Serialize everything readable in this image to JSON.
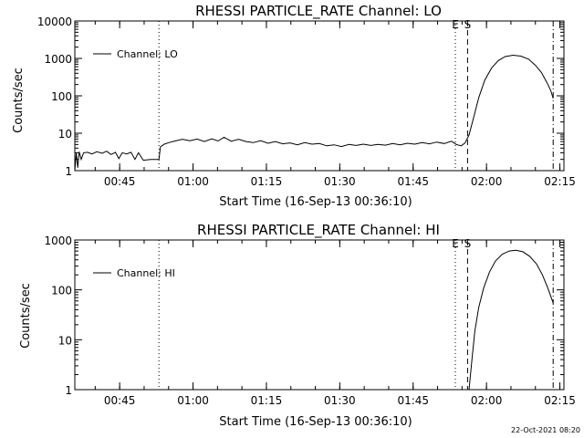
{
  "footer_text": "22-Oct-2021 08:20",
  "chart_data": [
    {
      "type": "line",
      "title": "RHESSI PARTICLE_RATE Channel: LO",
      "xlabel": "Start Time (16-Sep-13 00:36:10)",
      "ylabel": "Counts/sec",
      "yscale": "log",
      "xlim_minutes": [
        0.0,
        100.0
      ],
      "ylim": [
        1,
        10000
      ],
      "x_tick_minutes": [
        9.17,
        24.17,
        39.17,
        54.17,
        69.17,
        84.17,
        99.17
      ],
      "x_tick_labels": [
        "00:45",
        "01:00",
        "01:15",
        "01:30",
        "01:45",
        "02:00",
        "02:15"
      ],
      "y_tick_values": [
        1,
        10,
        100,
        1000,
        10000
      ],
      "y_tick_labels": [
        "1",
        "10",
        "100",
        "1000",
        "10000"
      ],
      "legend": {
        "label": "Channel: LO",
        "position": "top-left"
      },
      "markers": [
        {
          "minute": 17.2,
          "style": "dotted",
          "label": ""
        },
        {
          "minute": 77.8,
          "style": "dotted",
          "label": "E"
        },
        {
          "minute": 80.3,
          "style": "dashed",
          "label": "S"
        },
        {
          "minute": 97.8,
          "style": "dashdot",
          "label": ""
        }
      ],
      "series": [
        {
          "name": "Channel: LO",
          "points": [
            [
              0.0,
              1.0
            ],
            [
              0.3,
              3.0
            ],
            [
              0.6,
              1.2
            ],
            [
              0.9,
              3.2
            ],
            [
              1.3,
              2.0
            ],
            [
              1.8,
              3.0
            ],
            [
              2.6,
              3.1
            ],
            [
              3.5,
              2.8
            ],
            [
              4.5,
              3.2
            ],
            [
              5.6,
              2.9
            ],
            [
              6.5,
              3.3
            ],
            [
              7.4,
              2.7
            ],
            [
              8.3,
              3.1
            ],
            [
              9.0,
              2.1
            ],
            [
              9.7,
              3.0
            ],
            [
              10.6,
              2.8
            ],
            [
              11.5,
              3.1
            ],
            [
              12.3,
              2.0
            ],
            [
              13.0,
              3.0
            ],
            [
              14.0,
              1.9
            ],
            [
              15.5,
              2.0
            ],
            [
              17.2,
              2.0
            ],
            [
              17.5,
              4.3
            ],
            [
              18.3,
              5.1
            ],
            [
              19.2,
              5.6
            ],
            [
              20.5,
              6.2
            ],
            [
              22.0,
              6.9
            ],
            [
              23.5,
              6.3
            ],
            [
              25.0,
              7.0
            ],
            [
              26.5,
              6.0
            ],
            [
              28.0,
              7.1
            ],
            [
              29.3,
              6.2
            ],
            [
              30.5,
              7.8
            ],
            [
              32.0,
              6.1
            ],
            [
              33.5,
              6.9
            ],
            [
              35.0,
              6.0
            ],
            [
              36.5,
              5.6
            ],
            [
              38.0,
              6.3
            ],
            [
              39.5,
              5.4
            ],
            [
              41.0,
              6.0
            ],
            [
              42.5,
              5.2
            ],
            [
              44.0,
              5.5
            ],
            [
              45.5,
              4.9
            ],
            [
              47.0,
              5.6
            ],
            [
              48.5,
              5.1
            ],
            [
              50.0,
              5.3
            ],
            [
              51.5,
              4.6
            ],
            [
              53.0,
              4.9
            ],
            [
              54.5,
              4.4
            ],
            [
              56.0,
              5.0
            ],
            [
              57.5,
              4.7
            ],
            [
              59.0,
              5.1
            ],
            [
              60.5,
              4.7
            ],
            [
              62.0,
              5.0
            ],
            [
              63.5,
              4.8
            ],
            [
              65.0,
              5.3
            ],
            [
              66.5,
              4.9
            ],
            [
              68.0,
              5.4
            ],
            [
              69.5,
              5.1
            ],
            [
              71.0,
              5.6
            ],
            [
              72.5,
              5.2
            ],
            [
              74.0,
              5.8
            ],
            [
              75.5,
              5.3
            ],
            [
              77.0,
              6.1
            ],
            [
              78.0,
              5.0
            ],
            [
              79.0,
              4.6
            ],
            [
              79.8,
              5.5
            ],
            [
              80.6,
              9.0
            ],
            [
              81.5,
              25.0
            ],
            [
              82.6,
              90.0
            ],
            [
              83.8,
              260.0
            ],
            [
              85.2,
              550.0
            ],
            [
              86.6,
              880.0
            ],
            [
              88.0,
              1120.0
            ],
            [
              89.6,
              1220.0
            ],
            [
              91.2,
              1150.0
            ],
            [
              92.8,
              950.0
            ],
            [
              94.2,
              650.0
            ],
            [
              95.4,
              420.0
            ],
            [
              96.5,
              230.0
            ],
            [
              97.3,
              140.0
            ],
            [
              97.8,
              85.0
            ]
          ]
        }
      ]
    },
    {
      "type": "line",
      "title": "RHESSI PARTICLE_RATE Channel: HI",
      "xlabel": "Start Time (16-Sep-13 00:36:10)",
      "ylabel": "Counts/sec",
      "yscale": "log",
      "xlim_minutes": [
        0.0,
        100.0
      ],
      "ylim": [
        1,
        1000
      ],
      "x_tick_minutes": [
        9.17,
        24.17,
        39.17,
        54.17,
        69.17,
        84.17,
        99.17
      ],
      "x_tick_labels": [
        "00:45",
        "01:00",
        "01:15",
        "01:30",
        "01:45",
        "02:00",
        "02:15"
      ],
      "y_tick_values": [
        1,
        10,
        100,
        1000
      ],
      "y_tick_labels": [
        "1",
        "10",
        "100",
        "1000"
      ],
      "legend": {
        "label": "Channel: HI",
        "position": "top-left"
      },
      "markers": [
        {
          "minute": 17.2,
          "style": "dotted",
          "label": ""
        },
        {
          "minute": 77.8,
          "style": "dotted",
          "label": "E"
        },
        {
          "minute": 80.3,
          "style": "dashed",
          "label": "S"
        },
        {
          "minute": 97.8,
          "style": "dashdot",
          "label": ""
        }
      ],
      "series": [
        {
          "name": "Channel: HI",
          "points": [
            [
              80.6,
              1.0
            ],
            [
              81.2,
              4.0
            ],
            [
              81.8,
              15.0
            ],
            [
              82.6,
              45.0
            ],
            [
              83.6,
              110.0
            ],
            [
              84.8,
              230.0
            ],
            [
              86.0,
              380.0
            ],
            [
              87.4,
              520.0
            ],
            [
              88.8,
              600.0
            ],
            [
              90.2,
              620.0
            ],
            [
              91.6,
              580.0
            ],
            [
              93.0,
              470.0
            ],
            [
              94.4,
              330.0
            ],
            [
              95.6,
              200.0
            ],
            [
              96.6,
              115.0
            ],
            [
              97.4,
              70.0
            ],
            [
              97.8,
              55.0
            ]
          ]
        }
      ]
    }
  ]
}
